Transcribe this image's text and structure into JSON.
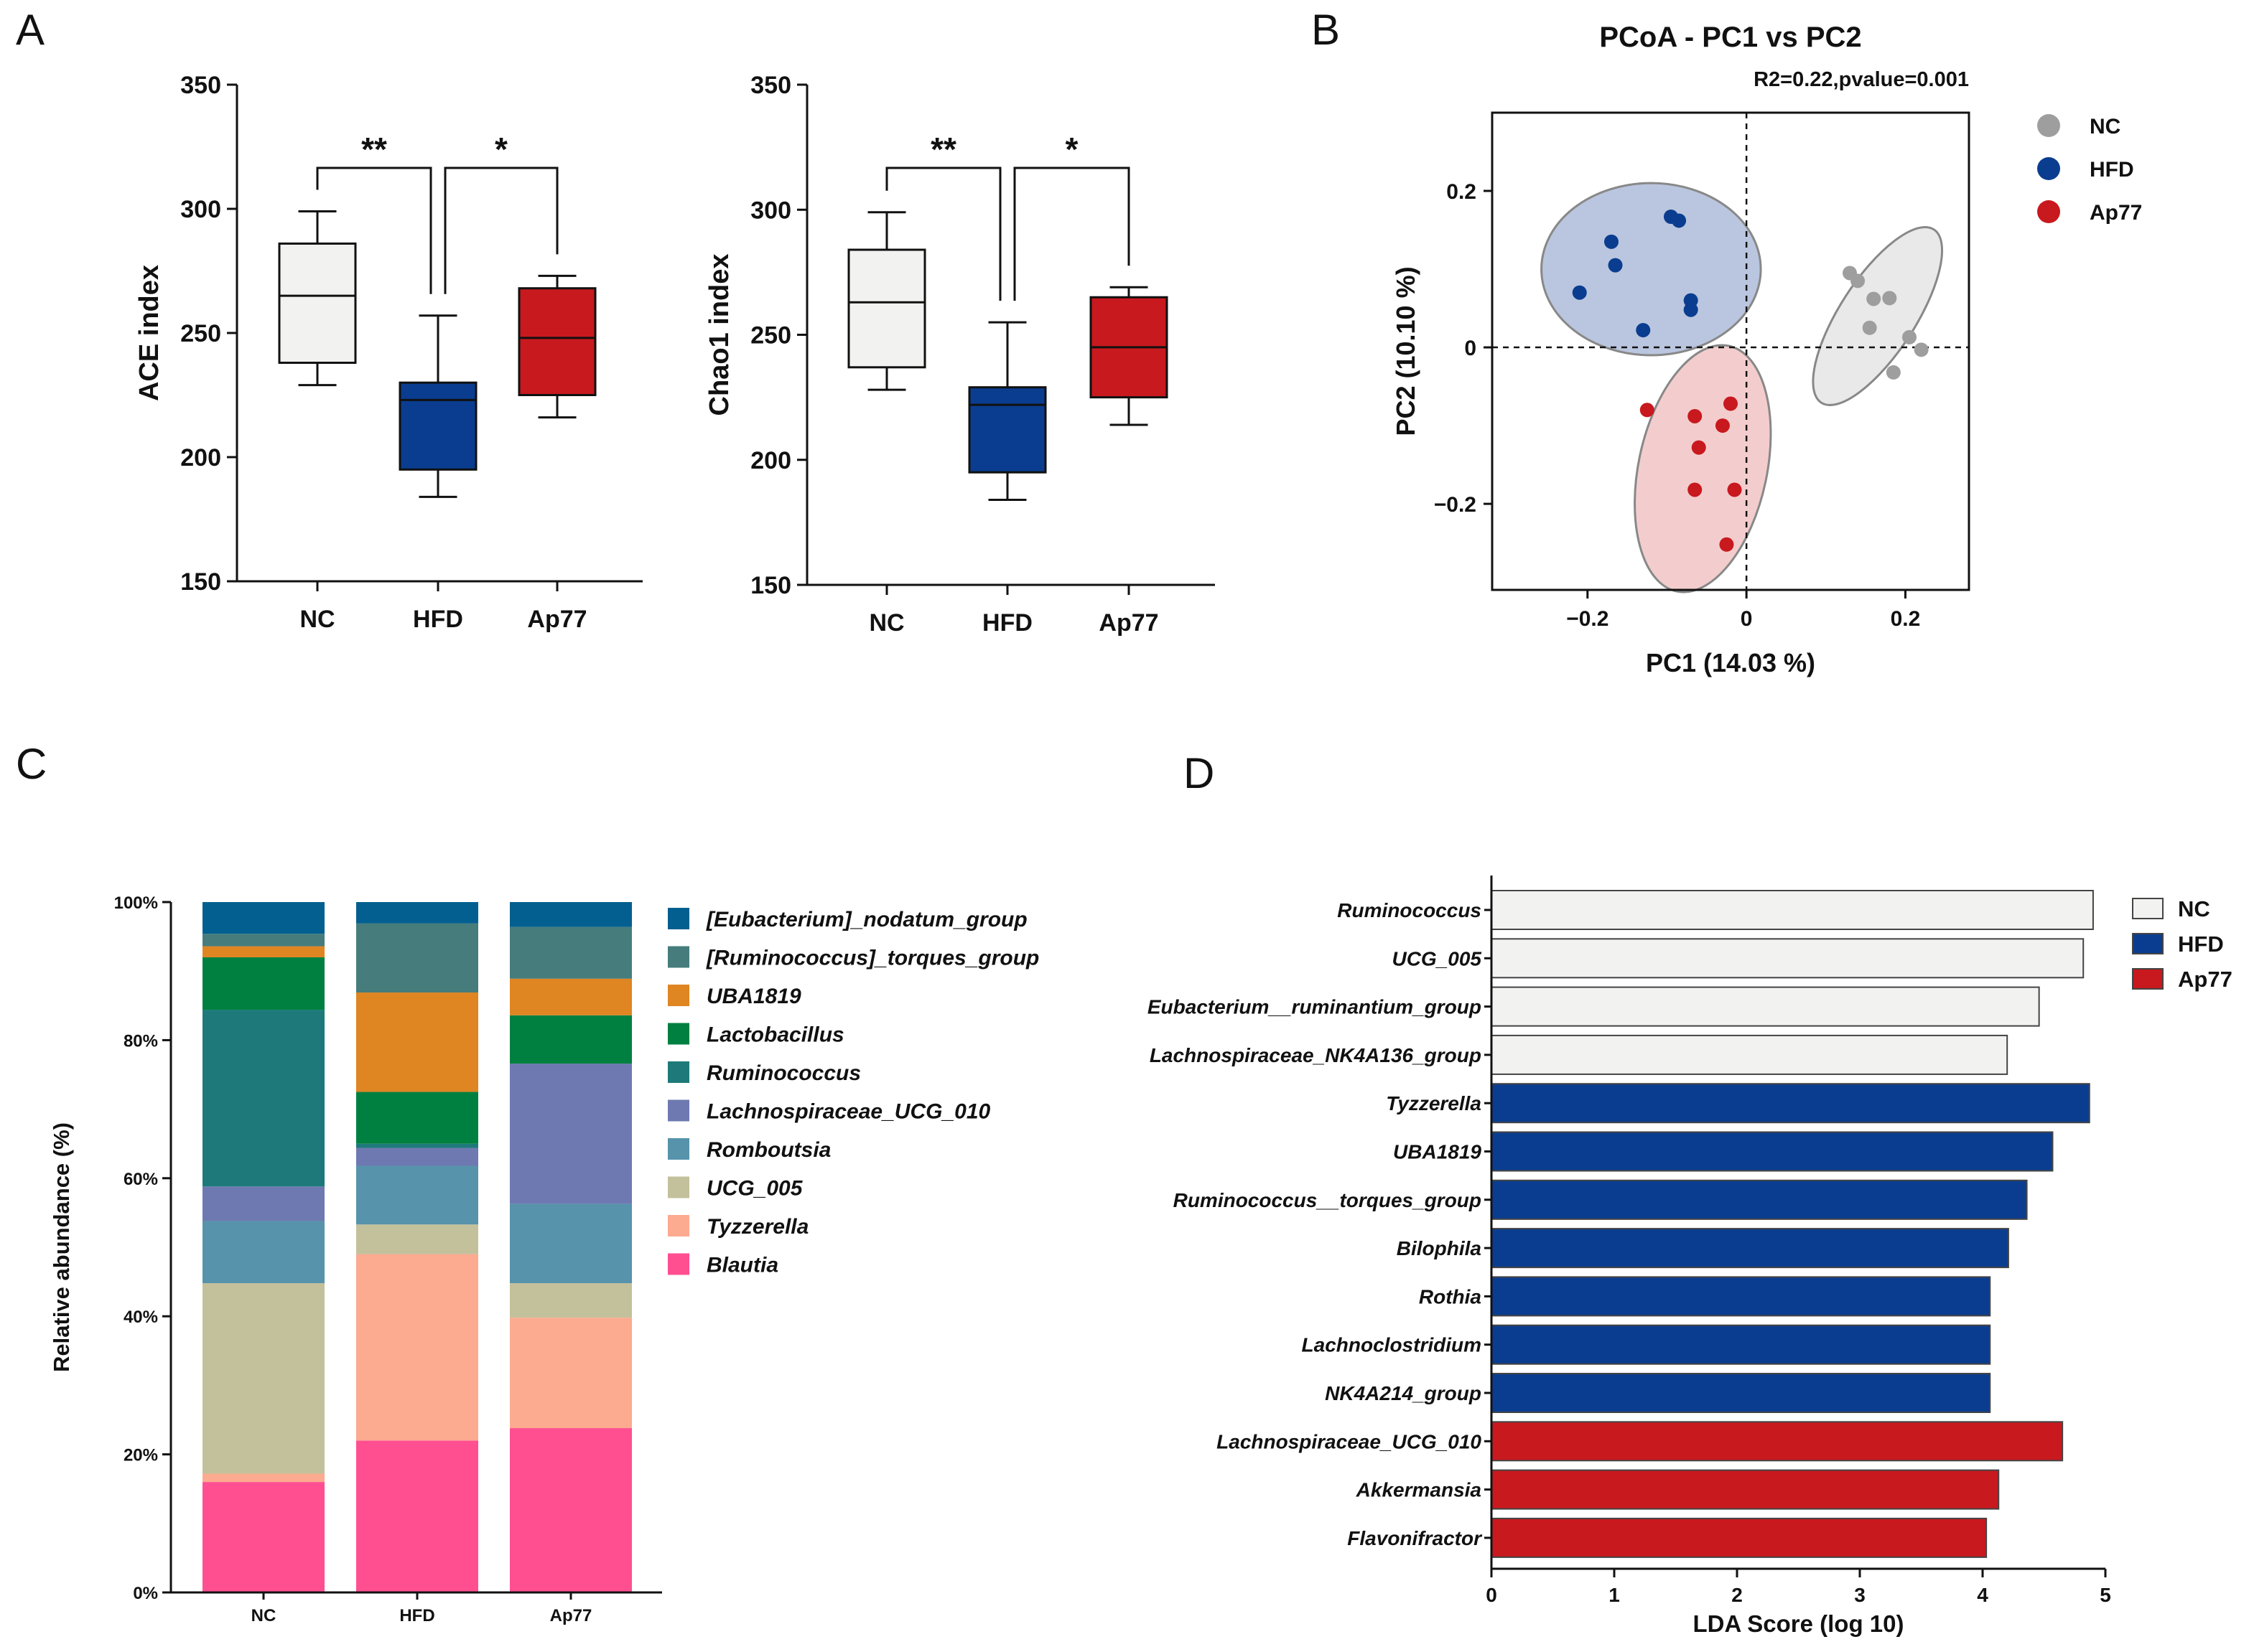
{
  "panel_labels": [
    "A",
    "B",
    "C",
    "D"
  ],
  "chart_data": [
    {
      "id": "ace",
      "type": "boxplot",
      "ylabel": "ACE index",
      "ylim": [
        150,
        350
      ],
      "yticks": [
        150,
        200,
        250,
        300,
        350
      ],
      "categories": [
        "NC",
        "HFD",
        "Ap77"
      ],
      "colors": [
        "#f2f2f0",
        "#0a3d8f",
        "#c8191e"
      ],
      "boxes": [
        {
          "min": 229,
          "q1": 238,
          "median": 265,
          "q3": 286,
          "max": 299
        },
        {
          "min": 184,
          "q1": 195,
          "median": 223,
          "q3": 230,
          "max": 257
        },
        {
          "min": 216,
          "q1": 225,
          "median": 248,
          "q3": 268,
          "max": 273
        }
      ],
      "significance": [
        {
          "from": 0,
          "to": 1,
          "label": "**"
        },
        {
          "from": 1,
          "to": 2,
          "label": "*"
        }
      ]
    },
    {
      "id": "chao1",
      "type": "boxplot",
      "ylabel": "Chao1 index",
      "ylim": [
        150,
        350
      ],
      "yticks": [
        150,
        200,
        250,
        300,
        350
      ],
      "categories": [
        "NC",
        "HFD",
        "Ap77"
      ],
      "colors": [
        "#f2f2f0",
        "#0a3d8f",
        "#c8191e"
      ],
      "boxes": [
        {
          "min": 228,
          "q1": 237,
          "median": 263,
          "q3": 284,
          "max": 299
        },
        {
          "min": 184,
          "q1": 195,
          "median": 222,
          "q3": 229,
          "max": 255
        },
        {
          "min": 214,
          "q1": 225,
          "median": 245,
          "q3": 265,
          "max": 269
        }
      ],
      "significance": [
        {
          "from": 0,
          "to": 1,
          "label": "**"
        },
        {
          "from": 1,
          "to": 2,
          "label": "*"
        }
      ]
    },
    {
      "id": "pcoa",
      "type": "scatter",
      "title": "PCoA - PC1 vs PC2",
      "subtitle": "R2=0.22,pvalue=0.001",
      "xlabel": "PC1 (14.03 %)",
      "ylabel": "PC2 (10.10 %)",
      "xlim": [
        -0.32,
        0.28
      ],
      "ylim": [
        -0.31,
        0.3
      ],
      "xticks": [
        -0.2,
        0,
        0.2
      ],
      "yticks": [
        -0.2,
        0,
        0.2
      ],
      "xtick_labels": [
        "−0.2",
        "0",
        "0.2"
      ],
      "ytick_labels": [
        "−0.2",
        "0",
        "0.2"
      ],
      "series": [
        {
          "name": "NC",
          "color": "#9e9e9e",
          "ellipse_fill": "#dcdcdc",
          "points": [
            [
              0.13,
              0.095
            ],
            [
              0.14,
              0.085
            ],
            [
              0.16,
              0.062
            ],
            [
              0.18,
              0.063
            ],
            [
              0.155,
              0.025
            ],
            [
              0.205,
              0.013
            ],
            [
              0.22,
              -0.003
            ],
            [
              0.185,
              -0.032
            ]
          ],
          "ellipse": {
            "cx": 0.165,
            "cy": 0.04,
            "rx": 0.13,
            "ry": 0.048,
            "angle": -57
          }
        },
        {
          "name": "HFD",
          "color": "#0a3d8f",
          "ellipse_fill": "#8fa3cc",
          "points": [
            [
              -0.21,
              0.07
            ],
            [
              -0.17,
              0.135
            ],
            [
              -0.165,
              0.105
            ],
            [
              -0.095,
              0.167
            ],
            [
              -0.085,
              0.162
            ],
            [
              -0.07,
              0.06
            ],
            [
              -0.07,
              0.048
            ],
            [
              -0.13,
              0.022
            ]
          ],
          "ellipse": {
            "cx": -0.12,
            "cy": 0.1,
            "rx": 0.138,
            "ry": 0.11,
            "angle": 0
          }
        },
        {
          "name": "Ap77",
          "color": "#c8191e",
          "ellipse_fill": "#ecaeae",
          "points": [
            [
              -0.125,
              -0.08
            ],
            [
              -0.065,
              -0.088
            ],
            [
              -0.03,
              -0.1
            ],
            [
              -0.02,
              -0.072
            ],
            [
              -0.06,
              -0.128
            ],
            [
              -0.065,
              -0.182
            ],
            [
              -0.015,
              -0.182
            ],
            [
              -0.025,
              -0.252
            ]
          ],
          "ellipse": {
            "cx": -0.055,
            "cy": -0.155,
            "rx": 0.158,
            "ry": 0.082,
            "angle": -78
          }
        }
      ]
    },
    {
      "id": "stacked",
      "type": "stacked-bar",
      "ylabel": "Relative abundance (%)",
      "categories": [
        "NC",
        "HFD",
        "Ap77"
      ],
      "yticks": [
        0,
        20,
        40,
        60,
        80,
        100
      ],
      "ytick_labels": [
        "0%",
        "20%",
        "40%",
        "60%",
        "80%",
        "100%"
      ],
      "series": [
        {
          "name": "Blautia",
          "color": "#ff4f91",
          "values": [
            16,
            22,
            23.8
          ]
        },
        {
          "name": "Tyzzerella",
          "color": "#fcaa90",
          "values": [
            1.2,
            27,
            16
          ]
        },
        {
          "name": "UCG_005",
          "color": "#c3c19b",
          "values": [
            27.6,
            4.3,
            5
          ]
        },
        {
          "name": "Romboutsia",
          "color": "#5793ab",
          "values": [
            9,
            8.5,
            11.5
          ]
        },
        {
          "name": "Lachnospiraceae_UCG_010",
          "color": "#6e79b1",
          "values": [
            5,
            2.6,
            20.3
          ]
        },
        {
          "name": "Ruminococcus",
          "color": "#1e7a7a",
          "values": [
            25.6,
            0.6,
            0
          ]
        },
        {
          "name": "Lactobacillus",
          "color": "#008040",
          "values": [
            7.6,
            7.5,
            7
          ]
        },
        {
          "name": "UBA1819",
          "color": "#df8522",
          "values": [
            1.6,
            14.4,
            5.3
          ]
        },
        {
          "name": "[Ruminococcus]_torques_group",
          "color": "#467c7c",
          "values": [
            1.8,
            10,
            7.5
          ]
        },
        {
          "name": "[Eubacterium]_nodatum_group",
          "color": "#035f8f",
          "values": [
            4.6,
            3.1,
            3.6
          ]
        }
      ]
    },
    {
      "id": "lda",
      "type": "bar",
      "xlabel": "LDA Score (log 10)",
      "xlim": [
        0,
        5
      ],
      "xticks": [
        0,
        1,
        2,
        3,
        4,
        5
      ],
      "groups": [
        {
          "name": "NC",
          "color": "#f2f2f0"
        },
        {
          "name": "HFD",
          "color": "#0a3d8f"
        },
        {
          "name": "Ap77",
          "color": "#c8191e"
        }
      ],
      "bars": [
        {
          "label": "Ruminococcus",
          "value": 4.9,
          "group": 0
        },
        {
          "label": "UCG_005",
          "value": 4.82,
          "group": 0
        },
        {
          "label": "Eubacterium__ruminantium_group",
          "value": 4.46,
          "group": 0
        },
        {
          "label": "Lachnospiraceae_NK4A136_group",
          "value": 4.2,
          "group": 0
        },
        {
          "label": "Tyzzerella",
          "value": 4.87,
          "group": 1
        },
        {
          "label": "UBA1819",
          "value": 4.57,
          "group": 1
        },
        {
          "label": "Ruminococcus__torques_group",
          "value": 4.36,
          "group": 1
        },
        {
          "label": "Bilophila",
          "value": 4.21,
          "group": 1
        },
        {
          "label": "Rothia",
          "value": 4.06,
          "group": 1
        },
        {
          "label": "Lachnoclostridium",
          "value": 4.06,
          "group": 1
        },
        {
          "label": "NK4A214_group",
          "value": 4.06,
          "group": 1
        },
        {
          "label": "Lachnospiraceae_UCG_010",
          "value": 4.65,
          "group": 2
        },
        {
          "label": "Akkermansia",
          "value": 4.13,
          "group": 2
        },
        {
          "label": "Flavonifractor",
          "value": 4.03,
          "group": 2
        }
      ]
    }
  ]
}
